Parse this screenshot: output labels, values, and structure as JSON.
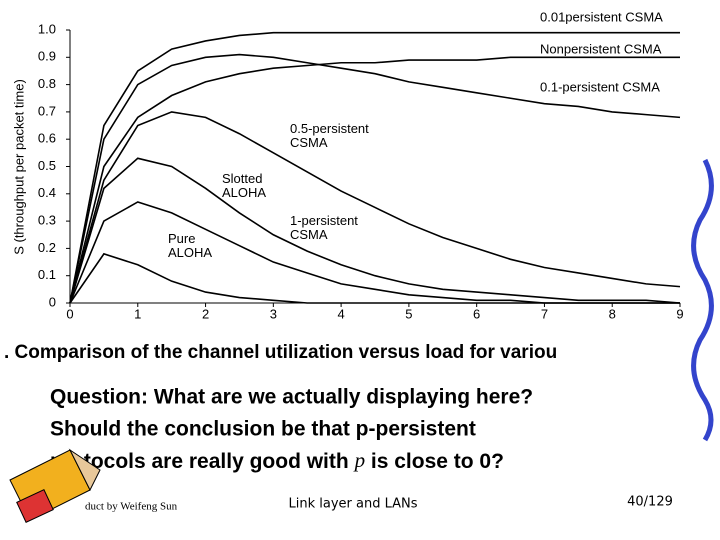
{
  "chart_data": {
    "type": "line",
    "y_label": "S (throughput per packet time)",
    "x": [
      0,
      0.5,
      1,
      1.5,
      2,
      2.5,
      3,
      3.5,
      4,
      4.5,
      5,
      5.5,
      6,
      6.5,
      7,
      7.5,
      8,
      8.5,
      9
    ],
    "xlim": [
      0,
      9
    ],
    "xticks": [
      0,
      1,
      2,
      3,
      4,
      5,
      6,
      7,
      8,
      9
    ],
    "ylim": [
      0,
      1
    ],
    "yticks": [
      0,
      0.1,
      0.2,
      0.3,
      0.4,
      0.5,
      0.6,
      0.7,
      0.8,
      0.9,
      {
        "value": 1,
        "label": "1.0"
      }
    ],
    "series": [
      {
        "name": "0.01persistent CSMA",
        "color": "#000000",
        "values": [
          0,
          0.65,
          0.85,
          0.93,
          0.96,
          0.98,
          0.99,
          0.99,
          0.99,
          0.99,
          0.99,
          0.99,
          0.99,
          0.99,
          0.99,
          0.99,
          0.99,
          0.99,
          0.99
        ]
      },
      {
        "name": "Nonpersistent CSMA",
        "color": "#000000",
        "values": [
          0,
          0.5,
          0.68,
          0.76,
          0.81,
          0.84,
          0.86,
          0.87,
          0.88,
          0.88,
          0.89,
          0.89,
          0.89,
          0.9,
          0.9,
          0.9,
          0.9,
          0.9,
          0.9
        ]
      },
      {
        "name": "0.1-persistent CSMA",
        "color": "#000000",
        "values": [
          0,
          0.6,
          0.8,
          0.87,
          0.9,
          0.91,
          0.9,
          0.88,
          0.86,
          0.84,
          0.81,
          0.79,
          0.77,
          0.75,
          0.73,
          0.72,
          0.7,
          0.69,
          0.68
        ]
      },
      {
        "name": "0.5-persistent CSMA",
        "color": "#000000",
        "values": [
          0,
          0.45,
          0.65,
          0.7,
          0.68,
          0.62,
          0.55,
          0.48,
          0.41,
          0.35,
          0.29,
          0.24,
          0.2,
          0.16,
          0.13,
          0.11,
          0.09,
          0.07,
          0.06
        ]
      },
      {
        "name": "Slotted ALOHA",
        "color": "#000000",
        "values": [
          0,
          0.3,
          0.37,
          0.33,
          0.27,
          0.21,
          0.15,
          0.11,
          0.07,
          0.05,
          0.03,
          0.02,
          0.01,
          0.01,
          0,
          0,
          0,
          0,
          0
        ]
      },
      {
        "name": "1-persistent CSMA",
        "color": "#000000",
        "values": [
          0,
          0.42,
          0.53,
          0.5,
          0.42,
          0.33,
          0.25,
          0.19,
          0.14,
          0.1,
          0.07,
          0.05,
          0.04,
          0.03,
          0.02,
          0.01,
          0.01,
          0.01,
          0
        ]
      },
      {
        "name": "Pure ALOHA",
        "color": "#000000",
        "values": [
          0,
          0.18,
          0.14,
          0.08,
          0.04,
          0.02,
          0.01,
          0,
          0,
          0,
          0,
          0,
          0,
          0,
          0,
          0,
          0,
          0,
          0
        ]
      }
    ]
  },
  "caption": ". Comparison of the channel utilization versus load for variou",
  "question": {
    "line1": "Question: What are we actually displaying here?",
    "line2": "Should the conclusion be that p-persistent",
    "line3a": "protocols are really good with ",
    "line3b": "p",
    "line3c": " is close to 0?"
  },
  "footer": {
    "author": "duct by Weifeng Sun",
    "title": "Link layer and LANs",
    "page": "40/129"
  }
}
